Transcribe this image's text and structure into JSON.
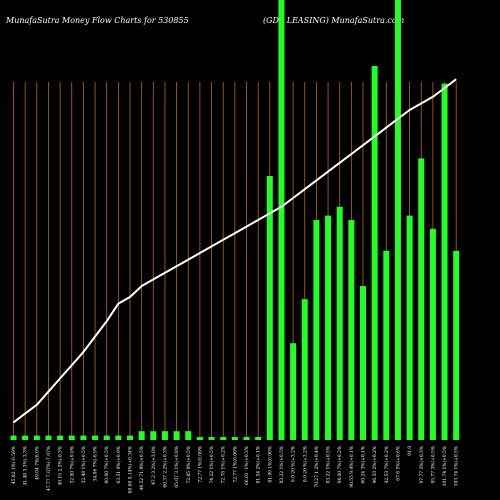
{
  "header": {
    "left": "MunafaSutra  Money Flow  Charts for 530855",
    "right": "(GDL LEASING) MunafaSutra.com"
  },
  "colors": {
    "background": "#000000",
    "bar": "#22ff22",
    "line": "#ffffff",
    "grid": "#b86a12",
    "text": "#ffffff"
  },
  "chart_data": {
    "type": "bar",
    "title": "MunafaSutra  Money Flow  Charts for 530855",
    "subtitle": "(GDL LEASING) MunafaSutra.com",
    "categories": [
      "45.82 1%(-0.59%",
      "41.48 3.3%(-3.3%",
      "49.04 7%(6.0%",
      "47.77 7.07%(-7.07%",
      "49.15 2.3%(-0.3%",
      "32.00 7%(+9.0%",
      "32.48 1%(+0.5%",
      "34.06 7%(-0.9%",
      "60.00 7%(+0.5%",
      "63.51 0%(+0.9%",
      "60.60 0.14%(+0.34%",
      "46.52 71.9%(+0.5%",
      "47.2 3.2%(+3.0%",
      "60.37 2.2%(+0.3%",
      "65.07 3.1%(+0.8%",
      "72.85 0%(+0.5%",
      "72.77 1%(0.00%",
      "74.22 1%(+0.5%",
      "72.78 1%(+0.2%",
      "72.77 1%(0.00%",
      "66.01 -1%(+0.3%",
      "81.54 2%(+0.1%",
      "81.99 1%(0.90%",
      "83.22 1%(+0.5%",
      "0.0 20 %(+3.2%",
      "0.0 20 %(+3.2%",
      "70.27 1.2%(+0.4%",
      "83.22 1%(+0.5%",
      "94.00 7%(+0.2%",
      "90.55 9.4%(+0.1%",
      "60.24 3%(+0.1%",
      "96.33 2%(+0.2%",
      "42.53 7%(+0.2%",
      "67.6 5%(+0.6%",
      "91.9",
      "97.77 3%(+0.3%",
      "95.77 3%(+0.5%",
      "101.74 1%(+0.5%",
      "103.74 1%(+0.5%"
    ],
    "series": [
      {
        "values": [
          1,
          1,
          1,
          1,
          1,
          1,
          1,
          1,
          1,
          1,
          1,
          2,
          2,
          2,
          2,
          2,
          0.5,
          0.5,
          0.5,
          0.5,
          0.5,
          0.5,
          60,
          100,
          22,
          32,
          50,
          51,
          53,
          50,
          35,
          85,
          43,
          100,
          51,
          64,
          48,
          81,
          43
        ]
      }
    ],
    "line": [
      4,
      6,
      8,
      11,
      14,
      17,
      20,
      23.5,
      27,
      31,
      32.5,
      35,
      36.5,
      38,
      39.5,
      41,
      42.5,
      44,
      45.5,
      47,
      48.5,
      50,
      51.5,
      53,
      55,
      57,
      59,
      61,
      63,
      65,
      67,
      69,
      71,
      73,
      75,
      76.5,
      78,
      80,
      82
    ],
    "ylim": [
      0,
      100
    ],
    "grid": "vertical",
    "legend": "none"
  }
}
